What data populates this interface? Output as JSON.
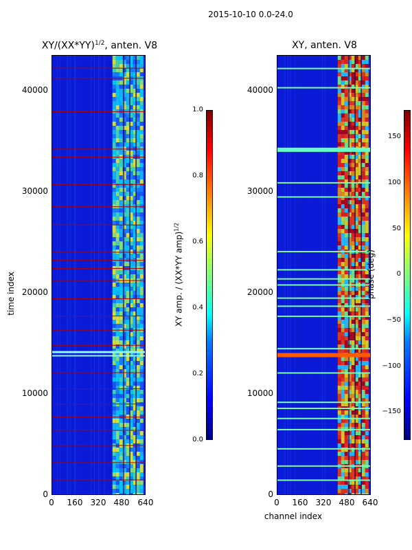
{
  "figure": {
    "suptitle": "2015-10-10 0.0-24.0"
  },
  "chart_data": [
    {
      "type": "heatmap",
      "title": "XY/(XX*YY)^{1/2}, anten. V8",
      "title_main": "XY/(XX*YY)",
      "title_sup": "1/2",
      "title_suffix": ", anten. V8",
      "xlabel": "",
      "ylabel": "time index",
      "x_ticks": [
        "0",
        "160",
        "320",
        "480",
        "640"
      ],
      "y_ticks": [
        "0",
        "10000",
        "20000",
        "30000",
        "40000"
      ],
      "xlim": [
        0,
        640
      ],
      "ylim": [
        0,
        43500
      ],
      "colorbar": {
        "label_main": "XY amp. / (XX*YY amp)",
        "label_sup": "1/2",
        "range": [
          0.0,
          1.0
        ],
        "ticks": [
          "0.0",
          "0.2",
          "0.4",
          "0.6",
          "0.8",
          "1.0"
        ]
      },
      "colormap": "jet",
      "active_channel_range": [
        410,
        620
      ],
      "flagged_rows": [
        1600,
        3300,
        5000,
        6500,
        7800,
        9100,
        10600,
        12200,
        14900,
        16400,
        17800,
        19500,
        21300,
        22500,
        23300,
        24100,
        26800,
        28600,
        30800,
        33500,
        34300,
        38000,
        41300,
        42300
      ]
    },
    {
      "type": "heatmap",
      "title": "XY, anten. V8",
      "xlabel": "channel index",
      "ylabel": "",
      "x_ticks": [
        "0",
        "160",
        "320",
        "480",
        "640"
      ],
      "y_ticks": [
        "0",
        "10000",
        "20000",
        "30000",
        "40000"
      ],
      "xlim": [
        0,
        640
      ],
      "ylim": [
        0,
        43500
      ],
      "colorbar": {
        "label_main": "phase (deg)",
        "range": [
          -180,
          180
        ],
        "ticks": [
          "150",
          "100",
          "50",
          "0",
          "−50",
          "−100",
          "−150"
        ]
      },
      "colormap": "jet",
      "active_channel_range": [
        410,
        620
      ],
      "bright_rows": [
        1600,
        3000,
        4700,
        6600,
        7700,
        8700,
        9300,
        12200,
        14100,
        14600,
        17800,
        18800,
        19600,
        20900,
        21500,
        22400,
        24200,
        29600,
        31000,
        34400,
        40400,
        42300
      ]
    }
  ]
}
